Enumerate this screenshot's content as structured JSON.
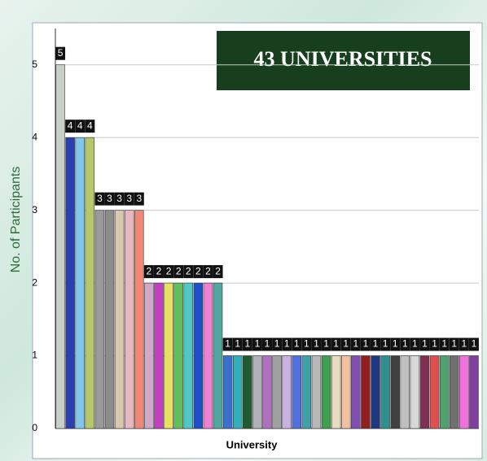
{
  "chart_data": {
    "type": "bar",
    "title": "43 UNIVERSITIES",
    "x_label": "University",
    "y_label": "No. of Participants",
    "categories": [
      null,
      null,
      null,
      null,
      null,
      null,
      null,
      null,
      null,
      null,
      null,
      null,
      null,
      null,
      null,
      null,
      null,
      null,
      null,
      null,
      null,
      null,
      null,
      null,
      null,
      null,
      null,
      null,
      null,
      null,
      null,
      null,
      null,
      null,
      null,
      null,
      null,
      null,
      null,
      null,
      null,
      null,
      null
    ],
    "values": [
      5,
      4,
      4,
      4,
      3,
      3,
      3,
      3,
      3,
      2,
      2,
      2,
      2,
      2,
      2,
      2,
      2,
      1,
      1,
      1,
      1,
      1,
      1,
      1,
      1,
      1,
      1,
      1,
      1,
      1,
      1,
      1,
      1,
      1,
      1,
      1,
      1,
      1,
      1,
      1,
      1,
      1,
      1
    ],
    "colors": [
      "#c8cfc8",
      "#2a3fb0",
      "#7fc8e8",
      "#b5c96a",
      "#9a9a9a",
      "#8c8c8c",
      "#d8c8b0",
      "#e8b8c0",
      "#f08878",
      "#d0a8c8",
      "#c040c0",
      "#e8e060",
      "#60c060",
      "#50c8c8",
      "#2050c8",
      "#f080d0",
      "#50a8a0",
      "#3a70d0",
      "#30b0b8",
      "#205a30",
      "#b0b0b8",
      "#b070c0",
      "#a0a0a0",
      "#c8b0e0",
      "#5070e0",
      "#40a0a8",
      "#b8b8b8",
      "#40a050",
      "#e8dcc0",
      "#f0c0a0",
      "#8050b0",
      "#902020",
      "#203880",
      "#309090",
      "#404040",
      "#c0c0c0",
      "#d8d8d8",
      "#803050",
      "#e05050",
      "#50a070",
      "#707070",
      "#f070e0",
      "#8040a0"
    ],
    "ylim": [
      0,
      5.5
    ],
    "yticks": [
      0,
      1,
      2,
      3,
      4,
      5
    ],
    "grid": true
  }
}
